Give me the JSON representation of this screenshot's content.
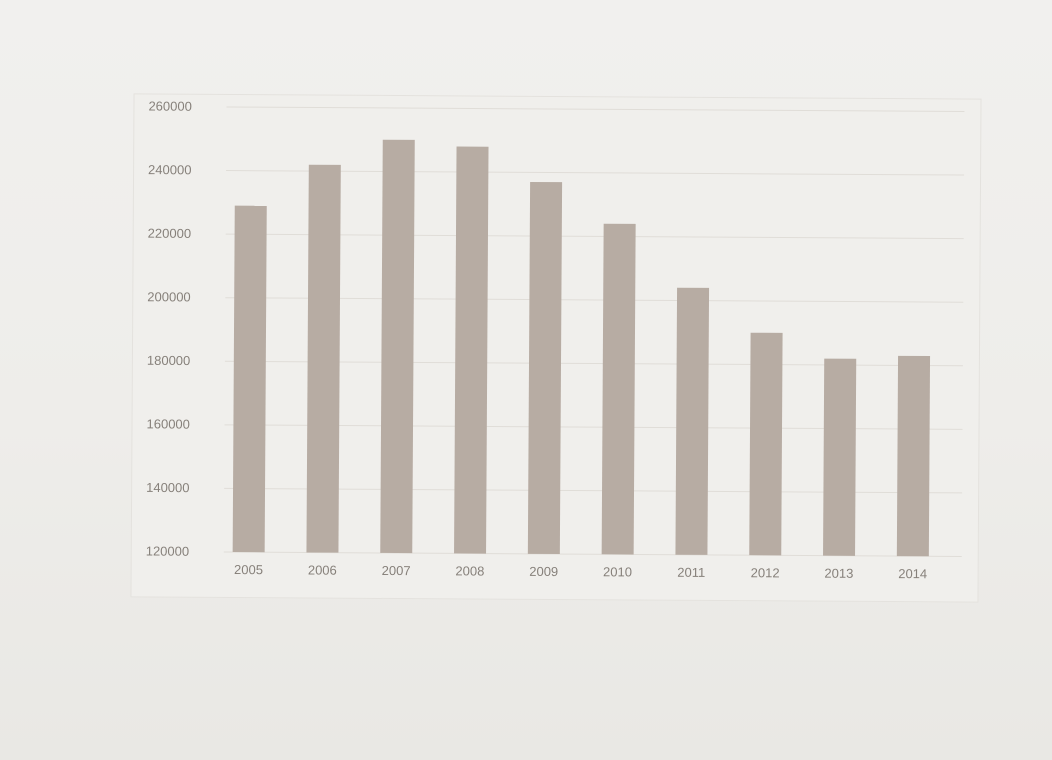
{
  "chart_data": {
    "type": "bar",
    "title": "",
    "xlabel": "",
    "ylabel": "",
    "categories": [
      "2005",
      "2006",
      "2007",
      "2008",
      "2009",
      "2010",
      "2011",
      "2012",
      "2013",
      "2014"
    ],
    "values": [
      229000,
      242000,
      250000,
      248000,
      237000,
      224000,
      204000,
      190000,
      182000,
      183000
    ],
    "ylim": [
      120000,
      260000
    ],
    "yticks": [
      120000,
      140000,
      160000,
      180000,
      200000,
      220000,
      240000,
      260000
    ],
    "ytick_labels": [
      "120000",
      "140000",
      "160000",
      "180000",
      "200000",
      "220000",
      "240000",
      "260000"
    ],
    "grid": true,
    "legend": "none",
    "colors": {
      "bar": "#b7aca3",
      "grid": "#e0ddd8",
      "axis_text": "#86807a"
    }
  }
}
